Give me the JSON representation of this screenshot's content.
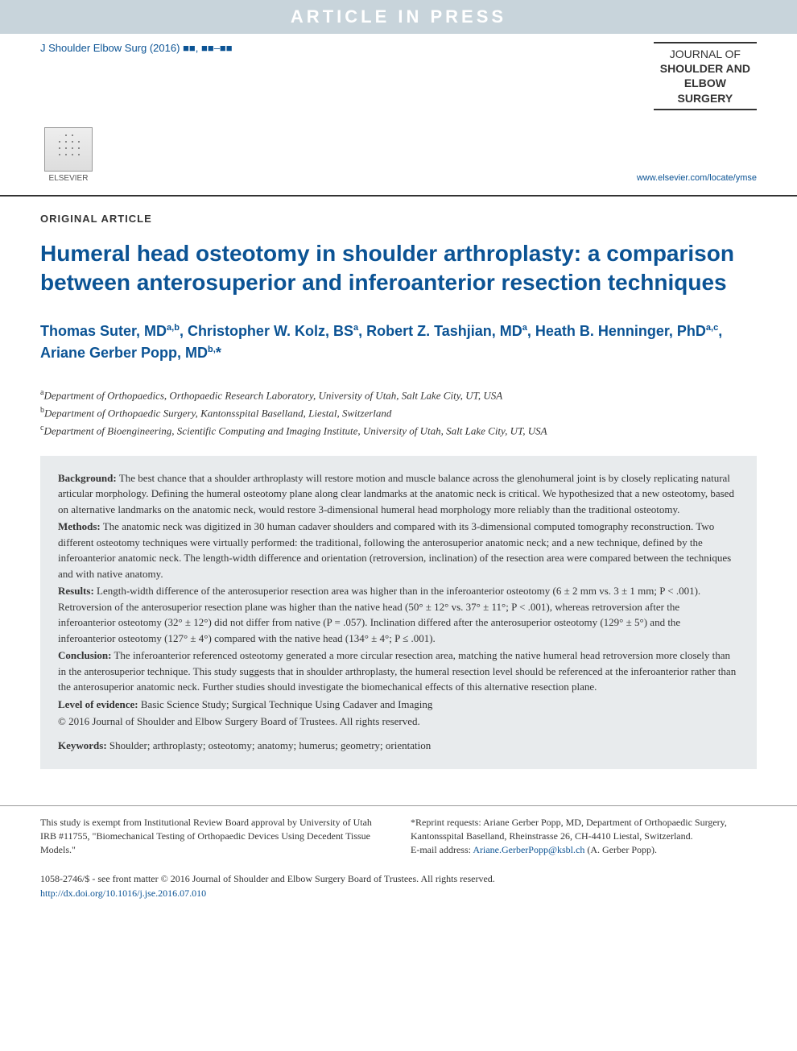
{
  "banner": "ARTICLE IN PRESS",
  "citation_prefix": "J Shoulder Elbow Surg (2016)",
  "citation_blocks": "■■, ■■–■■",
  "journal_name": {
    "l1": "JOURNAL OF",
    "l2": "SHOULDER AND",
    "l3": "ELBOW",
    "l4": "SURGERY"
  },
  "elsevier": "ELSEVIER",
  "journal_url": "www.elsevier.com/locate/ymse",
  "article_type": "ORIGINAL ARTICLE",
  "title": "Humeral head osteotomy in shoulder arthroplasty: a comparison between anterosuperior and inferoanterior resection techniques",
  "authors_html": "Thomas Suter, MD<sup>a,b</sup>, Christopher W. Kolz, BS<sup>a</sup>, Robert Z. Tashjian, MD<sup>a</sup>, Heath B. Henninger, PhD<sup>a,c</sup>, Ariane Gerber Popp, MD<sup>b,</sup>*",
  "affiliations": {
    "a": "Department of Orthopaedics, Orthopaedic Research Laboratory, University of Utah, Salt Lake City, UT, USA",
    "b": "Department of Orthopaedic Surgery, Kantonsspital Baselland, Liestal, Switzerland",
    "c": "Department of Bioengineering, Scientific Computing and Imaging Institute, University of Utah, Salt Lake City, UT, USA"
  },
  "abstract": {
    "background_label": "Background:",
    "background": "The best chance that a shoulder arthroplasty will restore motion and muscle balance across the glenohumeral joint is by closely replicating natural articular morphology. Defining the humeral osteotomy plane along clear landmarks at the anatomic neck is critical. We hypothesized that a new osteotomy, based on alternative landmarks on the anatomic neck, would restore 3-dimensional humeral head morphology more reliably than the traditional osteotomy.",
    "methods_label": "Methods:",
    "methods": "The anatomic neck was digitized in 30 human cadaver shoulders and compared with its 3-dimensional computed tomography reconstruction. Two different osteotomy techniques were virtually performed: the traditional, following the anterosuperior anatomic neck; and a new technique, defined by the inferoanterior anatomic neck. The length-width difference and orientation (retroversion, inclination) of the resection area were compared between the techniques and with native anatomy.",
    "results_label": "Results:",
    "results": "Length-width difference of the anterosuperior resection area was higher than in the inferoanterior osteotomy (6 ± 2 mm vs. 3 ± 1 mm; P < .001). Retroversion of the anterosuperior resection plane was higher than the native head (50° ± 12° vs. 37° ± 11°; P < .001), whereas retroversion after the inferoanterior osteotomy (32° ± 12°) did not differ from native (P = .057). Inclination differed after the anterosuperior osteotomy (129° ± 5°) and the inferoanterior osteotomy (127° ± 4°) compared with the native head (134° ± 4°; P ≤ .001).",
    "conclusion_label": "Conclusion:",
    "conclusion": "The inferoanterior referenced osteotomy generated a more circular resection area, matching the native humeral head retroversion more closely than in the anterosuperior technique. This study suggests that in shoulder arthroplasty, the humeral resection level should be referenced at the inferoanterior rather than the anterosuperior anatomic neck. Further studies should investigate the biomechanical effects of this alternative resection plane.",
    "loe_label": "Level of evidence:",
    "loe": "Basic Science Study; Surgical Technique Using Cadaver and Imaging",
    "copyright": "© 2016 Journal of Shoulder and Elbow Surgery Board of Trustees. All rights reserved.",
    "keywords_label": "Keywords:",
    "keywords": "Shoulder; arthroplasty; osteotomy; anatomy; humerus; geometry; orientation"
  },
  "footer": {
    "irb": "This study is exempt from Institutional Review Board approval by University of Utah IRB #11755, \"Biomechanical Testing of Orthopaedic Devices Using Decedent Tissue Models.\"",
    "reprint": "*Reprint requests: Ariane Gerber Popp, MD, Department of Orthopaedic Surgery, Kantonsspital Baselland, Rheinstrasse 26, CH-4410 Liestal, Switzerland.",
    "email_label": "E-mail address:",
    "email": "Ariane.GerberPopp@ksbl.ch",
    "email_suffix": "(A. Gerber Popp).",
    "bottom": "1058-2746/$ - see front matter © 2016 Journal of Shoulder and Elbow Surgery Board of Trustees. All rights reserved.",
    "doi": "http://dx.doi.org/10.1016/j.jse.2016.07.010"
  },
  "colors": {
    "banner_bg": "#c8d4db",
    "accent": "#0b5394",
    "abstract_bg": "#e8ebed"
  }
}
